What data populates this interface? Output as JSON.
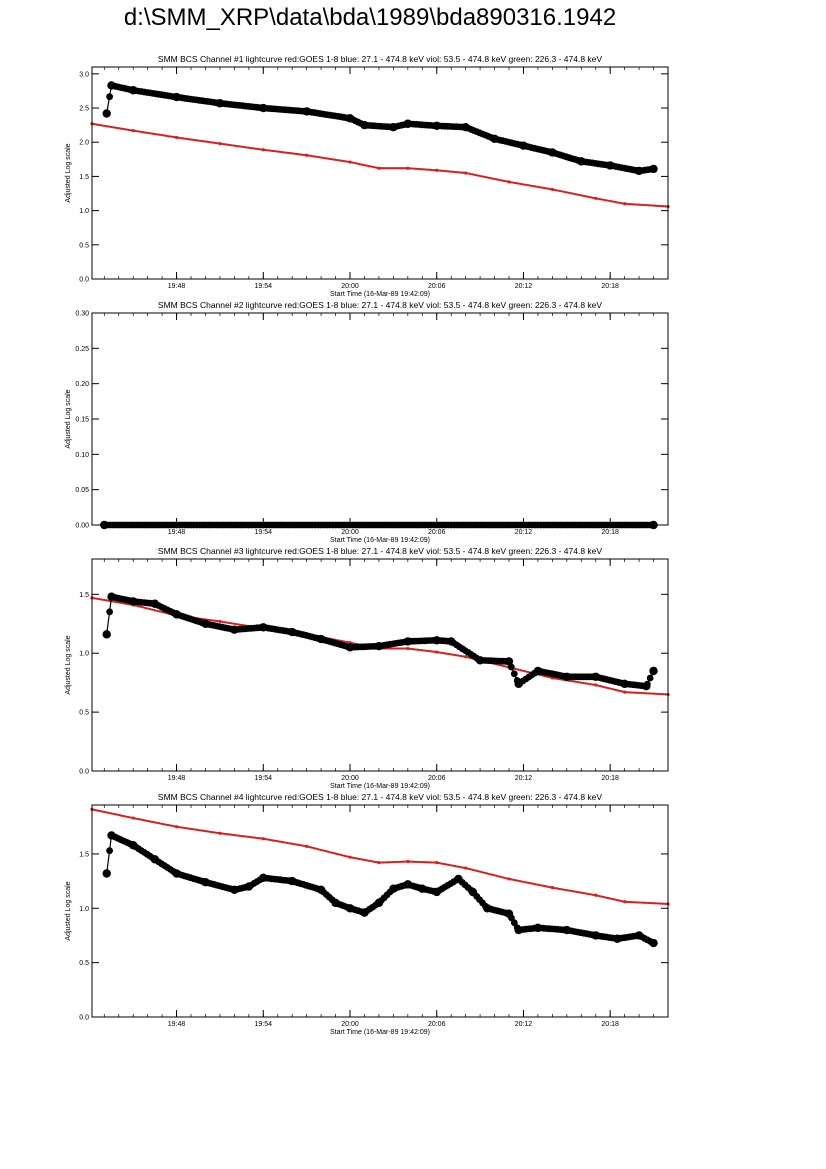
{
  "page_title": "d:\\SMM_XRP\\data\\bda\\1989\\bda890316.1942",
  "colors": {
    "goes": "#d62020",
    "bcs": "#000000",
    "axis": "#000000"
  },
  "chart_data": [
    {
      "type": "scatter",
      "title": "SMM BCS Channel #1 lightcurve  red:GOES 1-8  blue: 27.1 - 474.8 keV  viol: 53.5 - 474.8 keV  green: 226.3 - 474.8 keV",
      "xlabel": "Start Time (16-Mar-89 19:42:09)",
      "ylabel": "Adjusted Log scale",
      "xlim": [
        "19:42:09",
        "20:22:00"
      ],
      "ylim": [
        0.0,
        3.1
      ],
      "x_ticks": [
        "19:48",
        "19:54",
        "20:00",
        "20:06",
        "20:12",
        "20:18"
      ],
      "y_ticks": [
        "0.0",
        "0.5",
        "1.0",
        "1.5",
        "2.0",
        "2.5",
        "3.0"
      ],
      "series": [
        {
          "role": "goes",
          "color": "#d62020",
          "points": [
            [
              "19:42:09",
              2.27
            ],
            [
              "19:45:00",
              2.17
            ],
            [
              "19:48:00",
              2.07
            ],
            [
              "19:51:00",
              1.98
            ],
            [
              "19:54:00",
              1.89
            ],
            [
              "19:57:00",
              1.81
            ],
            [
              "20:00:00",
              1.71
            ],
            [
              "20:02:00",
              1.62
            ],
            [
              "20:04:00",
              1.62
            ],
            [
              "20:06:00",
              1.59
            ],
            [
              "20:08:00",
              1.55
            ],
            [
              "20:11:00",
              1.42
            ],
            [
              "20:14:00",
              1.31
            ],
            [
              "20:17:00",
              1.18
            ],
            [
              "20:19:00",
              1.1
            ],
            [
              "20:22:00",
              1.06
            ]
          ]
        },
        {
          "role": "bcs",
          "color": "#000000",
          "points": [
            [
              "19:43:10",
              2.42
            ],
            [
              "19:43:30",
              2.83
            ],
            [
              "19:45:00",
              2.76
            ],
            [
              "19:48:00",
              2.66
            ],
            [
              "19:51:00",
              2.57
            ],
            [
              "19:54:00",
              2.5
            ],
            [
              "19:57:00",
              2.45
            ],
            [
              "20:00:00",
              2.35
            ],
            [
              "20:01:00",
              2.25
            ],
            [
              "20:03:00",
              2.22
            ],
            [
              "20:04:00",
              2.27
            ],
            [
              "20:06:00",
              2.24
            ],
            [
              "20:08:00",
              2.22
            ],
            [
              "20:10:00",
              2.05
            ],
            [
              "20:12:00",
              1.95
            ],
            [
              "20:14:00",
              1.85
            ],
            [
              "20:16:00",
              1.72
            ],
            [
              "20:18:00",
              1.66
            ],
            [
              "20:20:00",
              1.58
            ],
            [
              "20:21:00",
              1.61
            ]
          ]
        }
      ]
    },
    {
      "type": "scatter",
      "title": "SMM BCS Channel #2 lightcurve  red:GOES 1-8  blue: 27.1 - 474.8 keV  viol: 53.5 - 474.8 keV  green: 226.3 - 474.8 keV",
      "xlabel": "Start Time (16-Mar-89 19:42:09)",
      "ylabel": "Adjusted Log scale",
      "xlim": [
        "19:42:09",
        "20:22:00"
      ],
      "ylim": [
        0.0,
        0.3
      ],
      "x_ticks": [
        "19:48",
        "19:54",
        "20:00",
        "20:06",
        "20:12",
        "20:18"
      ],
      "y_ticks": [
        "0.00",
        "0.05",
        "0.10",
        "0.15",
        "0.20",
        "0.25",
        "0.30"
      ],
      "series": [
        {
          "role": "bcs",
          "color": "#000000",
          "points": [
            [
              "19:43:00",
              0.0
            ],
            [
              "20:21:00",
              0.0
            ]
          ]
        }
      ]
    },
    {
      "type": "scatter",
      "title": "SMM BCS Channel #3 lightcurve  red:GOES 1-8  blue: 27.1 - 474.8 keV  viol: 53.5 - 474.8 keV  green: 226.3 - 474.8 keV",
      "xlabel": "Start Time (16-Mar-89 19:42:09)",
      "ylabel": "Adjusted Log scale",
      "xlim": [
        "19:42:09",
        "20:22:00"
      ],
      "ylim": [
        0.0,
        1.8
      ],
      "x_ticks": [
        "19:48",
        "19:54",
        "20:00",
        "20:06",
        "20:12",
        "20:18"
      ],
      "y_ticks": [
        "0.0",
        "0.5",
        "1.0",
        "1.5"
      ],
      "series": [
        {
          "role": "goes",
          "color": "#d62020",
          "points": [
            [
              "19:42:09",
              1.47
            ],
            [
              "19:45:00",
              1.41
            ],
            [
              "19:48:00",
              1.32
            ],
            [
              "19:51:00",
              1.27
            ],
            [
              "19:54:00",
              1.21
            ],
            [
              "19:57:00",
              1.16
            ],
            [
              "20:00:00",
              1.09
            ],
            [
              "20:02:00",
              1.04
            ],
            [
              "20:04:00",
              1.04
            ],
            [
              "20:06:00",
              1.01
            ],
            [
              "20:08:00",
              0.97
            ],
            [
              "20:11:00",
              0.88
            ],
            [
              "20:14:00",
              0.79
            ],
            [
              "20:17:00",
              0.73
            ],
            [
              "20:19:00",
              0.67
            ],
            [
              "20:22:00",
              0.65
            ]
          ]
        },
        {
          "role": "bcs",
          "color": "#000000",
          "points": [
            [
              "19:43:10",
              1.16
            ],
            [
              "19:43:30",
              1.48
            ],
            [
              "19:45:00",
              1.44
            ],
            [
              "19:46:30",
              1.42
            ],
            [
              "19:48:00",
              1.33
            ],
            [
              "19:50:00",
              1.25
            ],
            [
              "19:52:00",
              1.2
            ],
            [
              "19:54:00",
              1.22
            ],
            [
              "19:56:00",
              1.18
            ],
            [
              "19:58:00",
              1.12
            ],
            [
              "20:00:00",
              1.05
            ],
            [
              "20:02:00",
              1.06
            ],
            [
              "20:04:00",
              1.1
            ],
            [
              "20:06:00",
              1.11
            ],
            [
              "20:07:00",
              1.1
            ],
            [
              "20:09:00",
              0.94
            ],
            [
              "20:11:00",
              0.93
            ],
            [
              "20:11:40",
              0.74
            ],
            [
              "20:13:00",
              0.85
            ],
            [
              "20:15:00",
              0.8
            ],
            [
              "20:17:00",
              0.8
            ],
            [
              "20:19:00",
              0.74
            ],
            [
              "20:20:30",
              0.72
            ],
            [
              "20:21:00",
              0.85
            ]
          ]
        }
      ]
    },
    {
      "type": "scatter",
      "title": "SMM BCS Channel #4 lightcurve  red:GOES 1-8  blue: 27.1 - 474.8 keV  viol: 53.5 - 474.8 keV  green: 226.3 - 474.8 keV",
      "xlabel": "Start Time (16-Mar-89 19:42:09)",
      "ylabel": "Adjusted Log scale",
      "xlim": [
        "19:42:09",
        "20:22:00"
      ],
      "ylim": [
        0.0,
        1.95
      ],
      "x_ticks": [
        "19:48",
        "19:54",
        "20:00",
        "20:06",
        "20:12",
        "20:18"
      ],
      "y_ticks": [
        "0.0",
        "0.5",
        "1.0",
        "1.5"
      ],
      "series": [
        {
          "role": "goes",
          "color": "#d62020",
          "points": [
            [
              "19:42:09",
              1.91
            ],
            [
              "19:45:00",
              1.83
            ],
            [
              "19:48:00",
              1.75
            ],
            [
              "19:51:00",
              1.69
            ],
            [
              "19:54:00",
              1.64
            ],
            [
              "19:57:00",
              1.57
            ],
            [
              "20:00:00",
              1.47
            ],
            [
              "20:02:00",
              1.42
            ],
            [
              "20:04:00",
              1.43
            ],
            [
              "20:06:00",
              1.42
            ],
            [
              "20:08:00",
              1.37
            ],
            [
              "20:11:00",
              1.27
            ],
            [
              "20:14:00",
              1.19
            ],
            [
              "20:17:00",
              1.12
            ],
            [
              "20:19:00",
              1.06
            ],
            [
              "20:22:00",
              1.04
            ]
          ]
        },
        {
          "role": "bcs",
          "color": "#000000",
          "points": [
            [
              "19:43:10",
              1.32
            ],
            [
              "19:43:30",
              1.67
            ],
            [
              "19:45:00",
              1.58
            ],
            [
              "19:46:30",
              1.45
            ],
            [
              "19:48:00",
              1.32
            ],
            [
              "19:50:00",
              1.24
            ],
            [
              "19:52:00",
              1.17
            ],
            [
              "19:53:00",
              1.2
            ],
            [
              "19:54:00",
              1.28
            ],
            [
              "19:56:00",
              1.25
            ],
            [
              "19:58:00",
              1.17
            ],
            [
              "19:59:00",
              1.05
            ],
            [
              "20:00:00",
              1.0
            ],
            [
              "20:01:00",
              0.96
            ],
            [
              "20:02:00",
              1.05
            ],
            [
              "20:03:00",
              1.18
            ],
            [
              "20:04:00",
              1.22
            ],
            [
              "20:05:00",
              1.18
            ],
            [
              "20:06:00",
              1.15
            ],
            [
              "20:07:30",
              1.27
            ],
            [
              "20:08:30",
              1.15
            ],
            [
              "20:09:30",
              1.0
            ],
            [
              "20:11:00",
              0.95
            ],
            [
              "20:11:40",
              0.8
            ],
            [
              "20:13:00",
              0.82
            ],
            [
              "20:15:00",
              0.8
            ],
            [
              "20:17:00",
              0.75
            ],
            [
              "20:18:30",
              0.72
            ],
            [
              "20:20:00",
              0.75
            ],
            [
              "20:21:00",
              0.68
            ]
          ]
        }
      ]
    }
  ]
}
